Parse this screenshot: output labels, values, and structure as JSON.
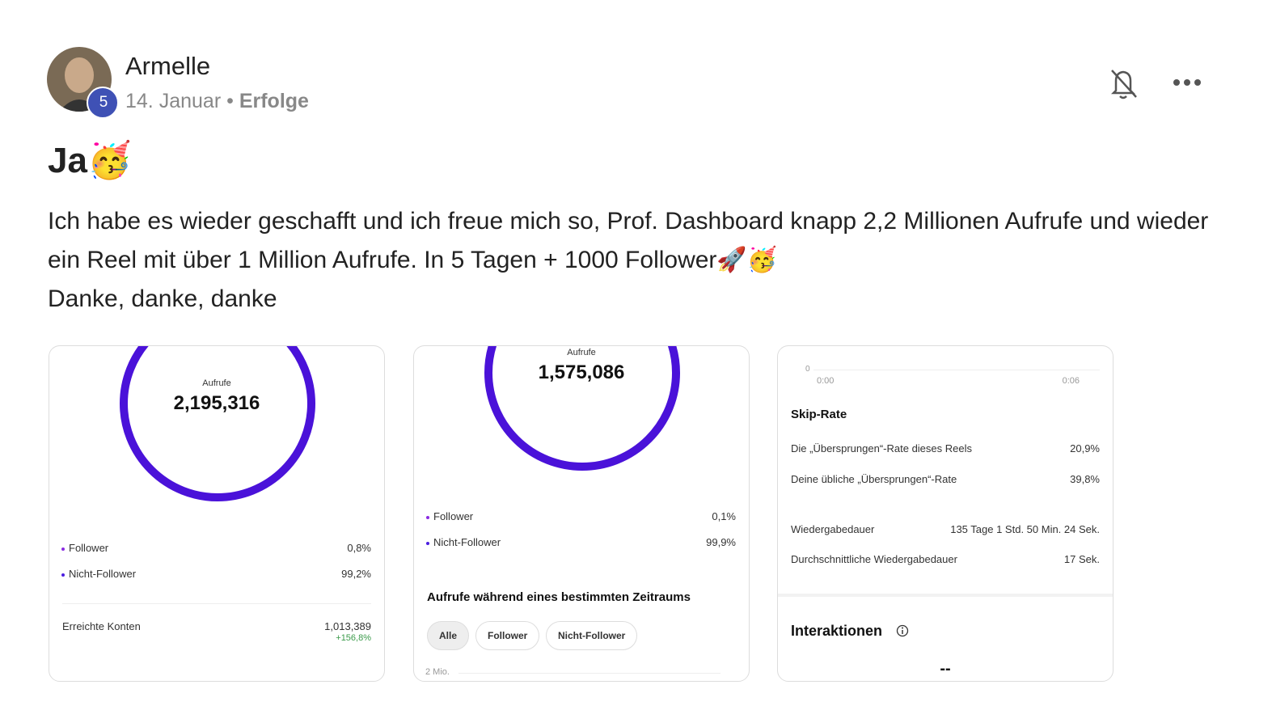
{
  "post": {
    "author": "Armelle",
    "badge": "5",
    "date": "14. Januar",
    "separator": "•",
    "category": "Erfolge",
    "title": "Ja🥳",
    "paragraphs": [
      "Ich habe es wieder geschafft und ich freue mich so, Prof. Dashboard knapp 2,2 Millionen Aufrufe und wieder ein Reel mit über 1 Million Aufrufe. In 5 Tagen + 1000 Follower🚀🥳",
      "Danke, danke, danke"
    ]
  },
  "images": [
    {
      "donut_label": "Aufrufe",
      "donut_value": "2,195,316",
      "rows": [
        [
          "Follower",
          "0,8%"
        ],
        [
          "Nicht-Follower",
          "99,2%"
        ]
      ],
      "reach_label": "Erreichte Konten",
      "reach_value": "1,013,389",
      "reach_change": "+156,8%"
    },
    {
      "donut_label": "Aufrufe",
      "donut_value": "1,575,086",
      "rows": [
        [
          "Follower",
          "0,1%"
        ],
        [
          "Nicht-Follower",
          "99,9%"
        ]
      ],
      "section_title": "Aufrufe während eines bestimmten Zeitraums",
      "filters": [
        "Alle",
        "Follower",
        "Nicht-Follower"
      ],
      "axis_label": "2 Mio."
    },
    {
      "axis_zero": "0",
      "time_start": "0:00",
      "time_end": "0:06",
      "section_title": "Skip-Rate",
      "rows": [
        [
          "Die „Übersprungen“-Rate dieses Reels",
          "20,9%"
        ],
        [
          "Deine übliche „Übersprungen“-Rate",
          "39,8%"
        ],
        [
          "Wiedergabedauer",
          "135 Tage 1 Std. 50 Min. 24 Sek."
        ],
        [
          "Durchschnittliche Wiedergabedauer",
          "17 Sek."
        ]
      ],
      "interactions_title": "Interaktionen",
      "interactions_value": "--"
    }
  ]
}
